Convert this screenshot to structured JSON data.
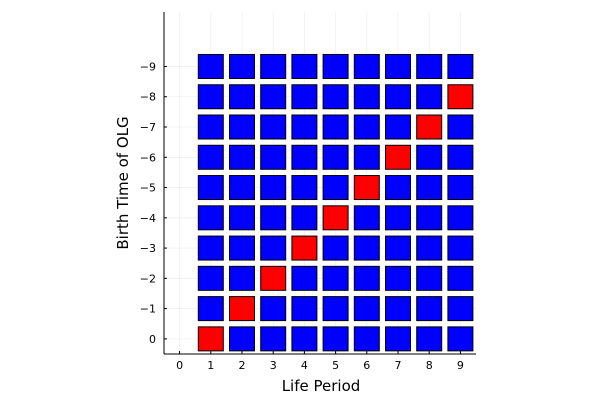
{
  "chart_data": {
    "type": "heatmap",
    "xlabel": "Life Period",
    "ylabel": "Birth Time of OLG",
    "x_ticks": [
      "0",
      "1",
      "2",
      "3",
      "4",
      "5",
      "6",
      "7",
      "8",
      "9"
    ],
    "y_ticks": [
      "0",
      "−1",
      "−2",
      "−3",
      "−4",
      "−5",
      "−6",
      "−7",
      "−8",
      "−9"
    ],
    "x_values": [
      1,
      2,
      3,
      4,
      5,
      6,
      7,
      8,
      9
    ],
    "y_values": [
      0,
      -1,
      -2,
      -3,
      -4,
      -5,
      -6,
      -7,
      -8,
      -9
    ],
    "xlim": [
      -0.5,
      9.5
    ],
    "ylim": [
      0.5,
      -10.8
    ],
    "grid": true,
    "legend": "none",
    "colors": {
      "default": "#0000ff",
      "highlight": "#ff0000",
      "border": "#000000"
    },
    "highlighted_cells": [
      {
        "x": 1,
        "y": 0
      },
      {
        "x": 2,
        "y": -1
      },
      {
        "x": 3,
        "y": -2
      },
      {
        "x": 4,
        "y": -3
      },
      {
        "x": 5,
        "y": -4
      },
      {
        "x": 6,
        "y": -5
      },
      {
        "x": 7,
        "y": -6
      },
      {
        "x": 8,
        "y": -7
      },
      {
        "x": 9,
        "y": -8
      }
    ]
  }
}
